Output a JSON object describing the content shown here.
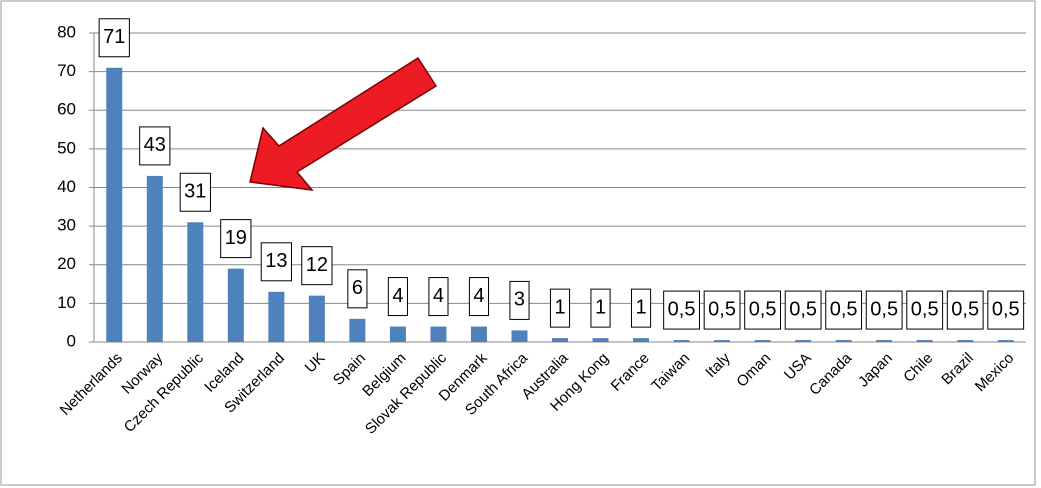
{
  "chart_data": {
    "type": "bar",
    "categories": [
      "Netherlands",
      "Norway",
      "Czech Republic",
      "Iceland",
      "Switzerland",
      "UK",
      "Spain",
      "Belgium",
      "Slovak Republic",
      "Denmark",
      "South Africa",
      "Australia",
      "Hong Kong",
      "France",
      "Taiwan",
      "Italy",
      "Oman",
      "USA",
      "Canada",
      "Japan",
      "Chile",
      "Brazil",
      "Mexico"
    ],
    "values": [
      71,
      43,
      31,
      19,
      13,
      12,
      6,
      4,
      4,
      4,
      3,
      1,
      1,
      1,
      0.5,
      0.5,
      0.5,
      0.5,
      0.5,
      0.5,
      0.5,
      0.5,
      0.5
    ],
    "value_labels": [
      "71",
      "43",
      "31",
      "19",
      "13",
      "12",
      "6",
      "4",
      "4",
      "4",
      "3",
      "1",
      "1",
      "1",
      "0,5",
      "0,5",
      "0,5",
      "0,5",
      "0,5",
      "0,5",
      "0,5",
      "0,5",
      "0,5"
    ],
    "color": "#4f81bd",
    "ylim": [
      0,
      80
    ],
    "yticks": [
      0,
      10,
      20,
      30,
      40,
      50,
      60,
      70,
      80
    ],
    "grid": true
  }
}
